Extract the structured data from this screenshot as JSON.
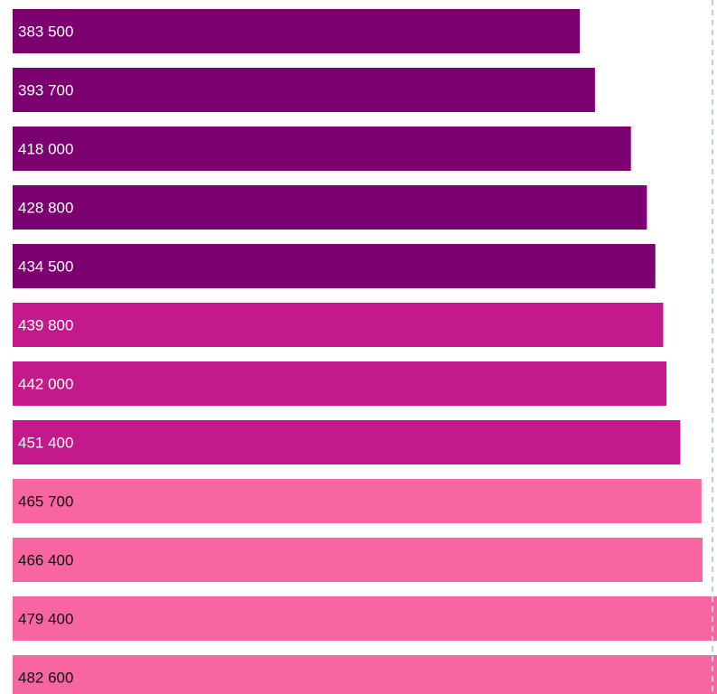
{
  "chart_data": {
    "type": "bar",
    "orientation": "horizontal",
    "title": "",
    "xlabel": "",
    "ylabel": "",
    "values": [
      383500,
      393700,
      418000,
      428800,
      434500,
      439800,
      442000,
      451400,
      465700,
      466400,
      479400,
      482600
    ],
    "labels": [
      "383 500",
      "393 700",
      "418 000",
      "428 800",
      "434 500",
      "439 800",
      "442 000",
      "451 400",
      "465 700",
      "466 400",
      "479 400",
      "482 600"
    ],
    "xlim": [
      0,
      500000
    ],
    "grid": false,
    "legend": "none",
    "bar_colors": [
      "#7b0070",
      "#7b0070",
      "#7b0070",
      "#7b0070",
      "#7b0070",
      "#c4198a",
      "#c4198a",
      "#c4198a",
      "#f766a0",
      "#f766a0",
      "#f766a0",
      "#f766a0"
    ],
    "label_colors": [
      "#ffffff",
      "#ffffff",
      "#ffffff",
      "#ffffff",
      "#ffffff",
      "#ffffff",
      "#ffffff",
      "#ffffff",
      "#111111",
      "#111111",
      "#111111",
      "#111111"
    ],
    "reference_line": {
      "style": "dashed",
      "color": "#b9cfe2"
    }
  }
}
